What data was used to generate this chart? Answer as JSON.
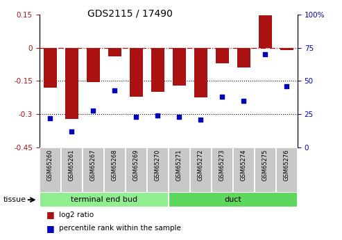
{
  "title": "GDS2115 / 17490",
  "samples": [
    "GSM65260",
    "GSM65261",
    "GSM65267",
    "GSM65268",
    "GSM65269",
    "GSM65270",
    "GSM65271",
    "GSM65272",
    "GSM65273",
    "GSM65274",
    "GSM65275",
    "GSM65276"
  ],
  "log2_ratio": [
    -0.18,
    -0.32,
    -0.155,
    -0.04,
    -0.22,
    -0.2,
    -0.17,
    -0.225,
    -0.07,
    -0.09,
    0.145,
    -0.01
  ],
  "percentile": [
    22,
    12,
    28,
    43,
    23,
    24,
    23,
    21,
    38,
    35,
    70,
    46
  ],
  "groups": [
    {
      "label": "terminal end bud",
      "color": "#90EE90",
      "start": 0,
      "end": 6
    },
    {
      "label": "duct",
      "color": "#5DD85D",
      "start": 6,
      "end": 12
    }
  ],
  "bar_color": "#AA1111",
  "dot_color": "#0000BB",
  "ylim_left": [
    -0.45,
    0.15
  ],
  "ylim_right": [
    0,
    100
  ],
  "yticks_left": [
    -0.45,
    -0.3,
    -0.15,
    0,
    0.15
  ],
  "yticks_right": [
    0,
    25,
    50,
    75,
    100
  ],
  "hline_y": 0,
  "hline_dotted1": -0.15,
  "hline_dotted2": -0.3,
  "legend_log2_label": "log2 ratio",
  "legend_pct_label": "percentile rank within the sample",
  "tissue_label": "tissue",
  "sample_box_color": "#C8C8C8",
  "background_color": "#ffffff"
}
